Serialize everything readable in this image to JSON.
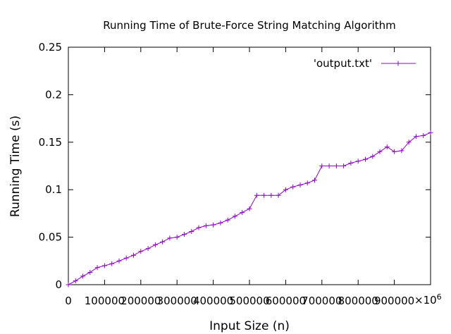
{
  "chart_data": {
    "type": "line",
    "title": "Running Time of Brute-Force String Matching Algorithm",
    "xlabel": "Input Size (n)",
    "ylabel": "Running Time (s)",
    "xlim": [
      0,
      1000000
    ],
    "ylim": [
      0,
      0.25
    ],
    "x_multiplier_label": "×10",
    "x_multiplier_exponent": "6",
    "x_ticks": [
      0,
      100000,
      200000,
      300000,
      400000,
      500000,
      600000,
      700000,
      800000,
      900000
    ],
    "x_tick_labels": [
      "0",
      "100000",
      "200000",
      "300000",
      "400000",
      "500000",
      "600000",
      "700000",
      "800000",
      "900000"
    ],
    "y_ticks": [
      0,
      0.05,
      0.1,
      0.15,
      0.2,
      0.25
    ],
    "y_tick_labels": [
      "0",
      "0.05",
      "0.1",
      "0.15",
      "0.2",
      "0.25"
    ],
    "grid": false,
    "legend": "top-right",
    "marker": "plus",
    "color": "#9400d3",
    "series": [
      {
        "name": "'output.txt'",
        "x": [
          0,
          20000,
          40000,
          60000,
          80000,
          100000,
          120000,
          140000,
          160000,
          180000,
          200000,
          220000,
          240000,
          260000,
          280000,
          300000,
          320000,
          340000,
          360000,
          380000,
          400000,
          420000,
          440000,
          460000,
          480000,
          500000,
          520000,
          540000,
          560000,
          580000,
          600000,
          620000,
          640000,
          660000,
          680000,
          700000,
          720000,
          740000,
          760000,
          780000,
          800000,
          820000,
          840000,
          860000,
          880000,
          900000,
          920000,
          940000,
          960000,
          980000,
          1000000
        ],
        "y": [
          0,
          0.004,
          0.009,
          0.013,
          0.018,
          0.02,
          0.022,
          0.025,
          0.028,
          0.031,
          0.035,
          0.038,
          0.042,
          0.045,
          0.049,
          0.05,
          0.053,
          0.056,
          0.06,
          0.062,
          0.063,
          0.065,
          0.068,
          0.072,
          0.076,
          0.08,
          0.094,
          0.094,
          0.094,
          0.094,
          0.1,
          0.103,
          0.105,
          0.107,
          0.11,
          0.125,
          0.125,
          0.125,
          0.125,
          0.128,
          0.13,
          0.132,
          0.135,
          0.14,
          0.145,
          0.14,
          0.141,
          0.15,
          0.156,
          0.157,
          0.16
        ]
      }
    ]
  }
}
